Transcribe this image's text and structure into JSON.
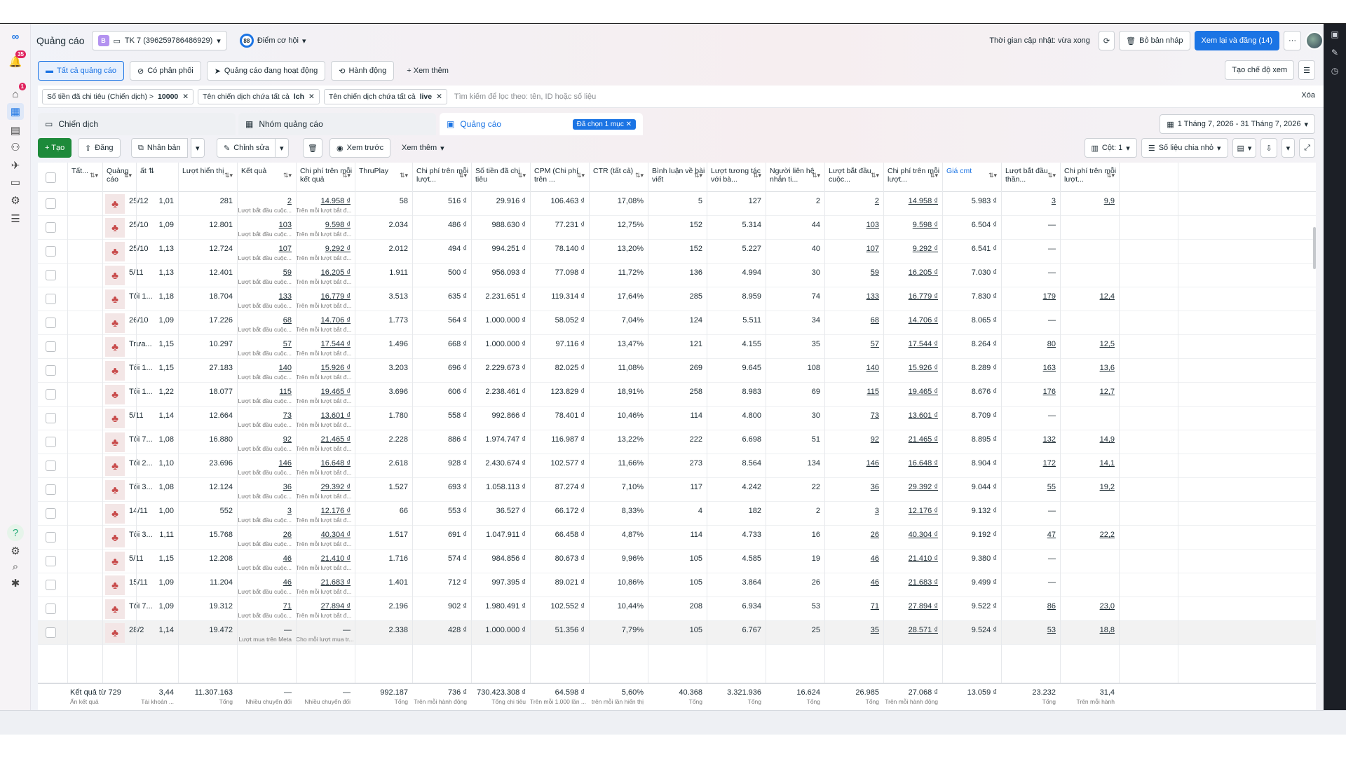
{
  "app": {
    "title": "Quảng cáo",
    "account_badge": "B",
    "account": "TK 7 (396259786486929)",
    "opp_score": "88",
    "opp_label": "Điểm cơ hội",
    "updated": "Thời gian cập nhật: vừa xong",
    "discard": "Bỏ bản nháp",
    "review": "Xem lại và đăng (14)",
    "more": "···",
    "notif_count": "35",
    "alert_count": "1"
  },
  "filters_row": {
    "all_ads": "Tất cả quảng cáo",
    "delivery": "Có phân phối",
    "active": "Quảng cáo đang hoạt động",
    "actions": "Hành động",
    "see_more": "+ Xem thêm",
    "create_view": "Tạo chế độ xem"
  },
  "filter_chips": [
    {
      "label": "Số tiền đã chi tiêu (Chiến dịch) >",
      "value": "10000"
    },
    {
      "label": "Tên chiến dịch chứa tất cả",
      "value": "lch"
    },
    {
      "label": "Tên chiến dịch chứa tất cả",
      "value": "live"
    }
  ],
  "search_placeholder": "Tìm kiếm để lọc theo: tên, ID hoặc số liệu",
  "clear": "Xóa",
  "tabs": {
    "campaign": "Chiến dịch",
    "adset": "Nhóm quảng cáo",
    "ad": "Quảng cáo",
    "selected": "Đã chọn 1 mục"
  },
  "date_range": "1 Tháng 7, 2026 - 31 Tháng 7, 2026",
  "toolbar": {
    "create": "+ Tạo",
    "publish": "Đăng",
    "duplicate": "Nhân bản",
    "edit": "Chỉnh sửa",
    "preview": "Xem trước",
    "more": "Xem thêm",
    "columns": "Cột: 1",
    "breakdown": "Số liệu chia nhỏ"
  },
  "headers": [
    "Tất...",
    "Quảng cáo",
    "Lượt hiển thị",
    "Kết quả",
    "Chi phí trên mỗi kết quả",
    "ThruPlay",
    "Chi phí trên mỗi lượt...",
    "Số tiền đã chi tiêu",
    "CPM (Chi phí trên ...",
    "CTR (tất cả)",
    "Bình luận về bài viết",
    "Lượt tương tác với bà...",
    "Người liên hệ nhắn ti...",
    "Lượt bắt đầu cuộc...",
    "Chi phí trên mỗi lượt...",
    "Giá cmt",
    "Lượt bắt đầu thần...",
    "Chi phí trên mỗi lượt..."
  ],
  "sub_result": "Lượt bắt đầu cuộc...",
  "sub_cost": "Trên mỗi lượt bắt đ...",
  "rows": [
    {
      "name": "25/12",
      "freq": "1,01",
      "imp": "281",
      "res": "2",
      "cpr": "14.958 ₫",
      "tp": "58",
      "cpt": "516 ₫",
      "spend": "29.916 ₫",
      "cpm": "106.463 ₫",
      "ctr": "17,08%",
      "cmt": "5",
      "eng": "127",
      "msg": "2",
      "conv": "2",
      "cpc": "14.958 ₫",
      "cmtprice": "5.983 ₫",
      "th": "3",
      "cpl": "9,9"
    },
    {
      "name": "25/10",
      "freq": "1,09",
      "imp": "12.801",
      "res": "103",
      "cpr": "9.598 ₫",
      "tp": "2.034",
      "cpt": "486 ₫",
      "spend": "988.630 ₫",
      "cpm": "77.231 ₫",
      "ctr": "12,75%",
      "cmt": "152",
      "eng": "5.314",
      "msg": "44",
      "conv": "103",
      "cpc": "9.598 ₫",
      "cmtprice": "6.504 ₫",
      "th": "—",
      "cpl": ""
    },
    {
      "name": "25/10",
      "freq": "1,13",
      "imp": "12.724",
      "res": "107",
      "cpr": "9.292 ₫",
      "tp": "2.012",
      "cpt": "494 ₫",
      "spend": "994.251 ₫",
      "cpm": "78.140 ₫",
      "ctr": "13,20%",
      "cmt": "152",
      "eng": "5.227",
      "msg": "40",
      "conv": "107",
      "cpc": "9.292 ₫",
      "cmtprice": "6.541 ₫",
      "th": "—",
      "cpl": ""
    },
    {
      "name": "5/11",
      "freq": "1,13",
      "imp": "12.401",
      "res": "59",
      "cpr": "16.205 ₫",
      "tp": "1.911",
      "cpt": "500 ₫",
      "spend": "956.093 ₫",
      "cpm": "77.098 ₫",
      "ctr": "11,72%",
      "cmt": "136",
      "eng": "4.994",
      "msg": "30",
      "conv": "59",
      "cpc": "16.205 ₫",
      "cmtprice": "7.030 ₫",
      "th": "—",
      "cpl": ""
    },
    {
      "name": "Tối 1...",
      "freq": "1,18",
      "imp": "18.704",
      "res": "133",
      "cpr": "16.779 ₫",
      "tp": "3.513",
      "cpt": "635 ₫",
      "spend": "2.231.651 ₫",
      "cpm": "119.314 ₫",
      "ctr": "17,64%",
      "cmt": "285",
      "eng": "8.959",
      "msg": "74",
      "conv": "133",
      "cpc": "16.779 ₫",
      "cmtprice": "7.830 ₫",
      "th": "179",
      "cpl": "12,4"
    },
    {
      "name": "26/10",
      "freq": "1,09",
      "imp": "17.226",
      "res": "68",
      "cpr": "14.706 ₫",
      "tp": "1.773",
      "cpt": "564 ₫",
      "spend": "1.000.000 ₫",
      "cpm": "58.052 ₫",
      "ctr": "7,04%",
      "cmt": "124",
      "eng": "5.511",
      "msg": "34",
      "conv": "68",
      "cpc": "14.706 ₫",
      "cmtprice": "8.065 ₫",
      "th": "—",
      "cpl": ""
    },
    {
      "name": "Trưa...",
      "freq": "1,15",
      "imp": "10.297",
      "res": "57",
      "cpr": "17.544 ₫",
      "tp": "1.496",
      "cpt": "668 ₫",
      "spend": "1.000.000 ₫",
      "cpm": "97.116 ₫",
      "ctr": "13,47%",
      "cmt": "121",
      "eng": "4.155",
      "msg": "35",
      "conv": "57",
      "cpc": "17.544 ₫",
      "cmtprice": "8.264 ₫",
      "th": "80",
      "cpl": "12,5"
    },
    {
      "name": "Tối 1...",
      "freq": "1,15",
      "imp": "27.183",
      "res": "140",
      "cpr": "15.926 ₫",
      "tp": "3.203",
      "cpt": "696 ₫",
      "spend": "2.229.673 ₫",
      "cpm": "82.025 ₫",
      "ctr": "11,08%",
      "cmt": "269",
      "eng": "9.645",
      "msg": "108",
      "conv": "140",
      "cpc": "15.926 ₫",
      "cmtprice": "8.289 ₫",
      "th": "163",
      "cpl": "13,6"
    },
    {
      "name": "Tối 1...",
      "freq": "1,22",
      "imp": "18.077",
      "res": "115",
      "cpr": "19.465 ₫",
      "tp": "3.696",
      "cpt": "606 ₫",
      "spend": "2.238.461 ₫",
      "cpm": "123.829 ₫",
      "ctr": "18,91%",
      "cmt": "258",
      "eng": "8.983",
      "msg": "69",
      "conv": "115",
      "cpc": "19.465 ₫",
      "cmtprice": "8.676 ₫",
      "th": "176",
      "cpl": "12,7"
    },
    {
      "name": "5/11",
      "freq": "1,14",
      "imp": "12.664",
      "res": "73",
      "cpr": "13.601 ₫",
      "tp": "1.780",
      "cpt": "558 ₫",
      "spend": "992.866 ₫",
      "cpm": "78.401 ₫",
      "ctr": "10,46%",
      "cmt": "114",
      "eng": "4.800",
      "msg": "30",
      "conv": "73",
      "cpc": "13.601 ₫",
      "cmtprice": "8.709 ₫",
      "th": "—",
      "cpl": ""
    },
    {
      "name": "Tối 7...",
      "freq": "1,08",
      "imp": "16.880",
      "res": "92",
      "cpr": "21.465 ₫",
      "tp": "2.228",
      "cpt": "886 ₫",
      "spend": "1.974.747 ₫",
      "cpm": "116.987 ₫",
      "ctr": "13,22%",
      "cmt": "222",
      "eng": "6.698",
      "msg": "51",
      "conv": "92",
      "cpc": "21.465 ₫",
      "cmtprice": "8.895 ₫",
      "th": "132",
      "cpl": "14,9"
    },
    {
      "name": "Tối 2...",
      "freq": "1,10",
      "imp": "23.696",
      "res": "146",
      "cpr": "16.648 ₫",
      "tp": "2.618",
      "cpt": "928 ₫",
      "spend": "2.430.674 ₫",
      "cpm": "102.577 ₫",
      "ctr": "11,66%",
      "cmt": "273",
      "eng": "8.564",
      "msg": "134",
      "conv": "146",
      "cpc": "16.648 ₫",
      "cmtprice": "8.904 ₫",
      "th": "172",
      "cpl": "14,1"
    },
    {
      "name": "Tối 3...",
      "freq": "1,08",
      "imp": "12.124",
      "res": "36",
      "cpr": "29.392 ₫",
      "tp": "1.527",
      "cpt": "693 ₫",
      "spend": "1.058.113 ₫",
      "cpm": "87.274 ₫",
      "ctr": "7,10%",
      "cmt": "117",
      "eng": "4.242",
      "msg": "22",
      "conv": "36",
      "cpc": "29.392 ₫",
      "cmtprice": "9.044 ₫",
      "th": "55",
      "cpl": "19,2"
    },
    {
      "name": "14/11",
      "freq": "1,00",
      "imp": "552",
      "res": "3",
      "cpr": "12.176 ₫",
      "tp": "66",
      "cpt": "553 ₫",
      "spend": "36.527 ₫",
      "cpm": "66.172 ₫",
      "ctr": "8,33%",
      "cmt": "4",
      "eng": "182",
      "msg": "2",
      "conv": "3",
      "cpc": "12.176 ₫",
      "cmtprice": "9.132 ₫",
      "th": "—",
      "cpl": ""
    },
    {
      "name": "Tối 3...",
      "freq": "1,11",
      "imp": "15.768",
      "res": "26",
      "cpr": "40.304 ₫",
      "tp": "1.517",
      "cpt": "691 ₫",
      "spend": "1.047.911 ₫",
      "cpm": "66.458 ₫",
      "ctr": "4,87%",
      "cmt": "114",
      "eng": "4.733",
      "msg": "16",
      "conv": "26",
      "cpc": "40.304 ₫",
      "cmtprice": "9.192 ₫",
      "th": "47",
      "cpl": "22,2"
    },
    {
      "name": "5/11",
      "freq": "1,15",
      "imp": "12.208",
      "res": "46",
      "cpr": "21.410 ₫",
      "tp": "1.716",
      "cpt": "574 ₫",
      "spend": "984.856 ₫",
      "cpm": "80.673 ₫",
      "ctr": "9,96%",
      "cmt": "105",
      "eng": "4.585",
      "msg": "19",
      "conv": "46",
      "cpc": "21.410 ₫",
      "cmtprice": "9.380 ₫",
      "th": "—",
      "cpl": ""
    },
    {
      "name": "15/11",
      "freq": "1,09",
      "imp": "11.204",
      "res": "46",
      "cpr": "21.683 ₫",
      "tp": "1.401",
      "cpt": "712 ₫",
      "spend": "997.395 ₫",
      "cpm": "89.021 ₫",
      "ctr": "10,86%",
      "cmt": "105",
      "eng": "3.864",
      "msg": "26",
      "conv": "46",
      "cpc": "21.683 ₫",
      "cmtprice": "9.499 ₫",
      "th": "—",
      "cpl": ""
    },
    {
      "name": "Tối 7...",
      "freq": "1,09",
      "imp": "19.312",
      "res": "71",
      "cpr": "27.894 ₫",
      "tp": "2.196",
      "cpt": "902 ₫",
      "spend": "1.980.491 ₫",
      "cpm": "102.552 ₫",
      "ctr": "10,44%",
      "cmt": "208",
      "eng": "6.934",
      "msg": "53",
      "conv": "71",
      "cpc": "27.894 ₫",
      "cmtprice": "9.522 ₫",
      "th": "86",
      "cpl": "23,0"
    },
    {
      "name": "28/2",
      "freq": "1,14",
      "imp": "19.472",
      "res": "—",
      "cpr": "—",
      "tp": "2.338",
      "cpt": "428 ₫",
      "spend": "1.000.000 ₫",
      "cpm": "51.356 ₫",
      "ctr": "7,79%",
      "cmt": "105",
      "eng": "6.767",
      "msg": "25",
      "conv": "35",
      "cpc": "28.571 ₫",
      "cmtprice": "9.524 ₫",
      "th": "53",
      "cpl": "18,8",
      "sub_res": "Lượt mua trên Meta",
      "sub_cpr": "Cho mỗi lượt mua tr..."
    }
  ],
  "footer": {
    "label": "Kết quả từ 729",
    "hidden": "Ẩn kết quả",
    "freq": "3,44",
    "freq_sub": "Tài khoản ...",
    "imp": "11.307.163",
    "imp_sub": "Tổng",
    "res": "—",
    "res_sub": "Nhiều chuyển đổi",
    "cpr": "—",
    "cpr_sub": "Nhiều chuyển đổi",
    "tp": "992.187",
    "tp_sub": "Tổng",
    "cpt": "736 ₫",
    "cpt_sub": "Trên mỗi hành động",
    "spend": "730.423.308 ₫",
    "spend_sub": "Tổng chi tiêu",
    "cpm": "64.598 ₫",
    "cpm_sub": "Trên mỗi 1.000 lần ...",
    "ctr": "5,60%",
    "ctr_sub": "trên mỗi lần hiển thị",
    "cmt": "40.368",
    "cmt_sub": "Tổng",
    "eng": "3.321.936",
    "eng_sub": "Tổng",
    "msg": "16.624",
    "msg_sub": "Tổng",
    "conv": "26.985",
    "conv_sub": "Tổng",
    "cpc": "27.068 ₫",
    "cpc_sub": "Trên mỗi hành động",
    "cmtprice": "13.059 ₫",
    "th": "23.232",
    "th_sub": "Tổng",
    "cpl": "31,4",
    "cpl_sub": "Trên mỗi hành"
  }
}
